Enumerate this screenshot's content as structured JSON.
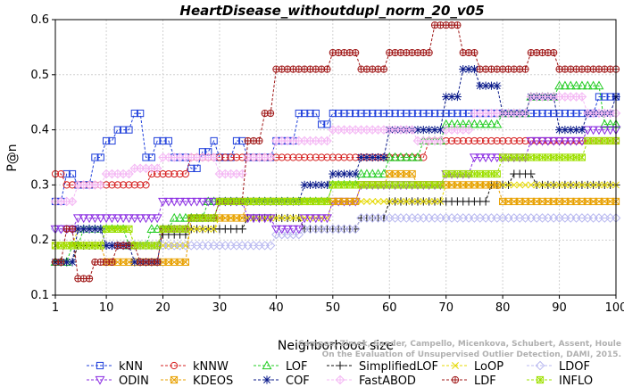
{
  "chart_data": {
    "type": "line",
    "title": "HeartDisease_withoutdupl_norm_20_v05",
    "xlabel": "Neighborhood size",
    "ylabel": "P@n",
    "xlim": [
      1,
      100
    ],
    "ylim": [
      0.1,
      0.6
    ],
    "xticks": [
      1,
      10,
      20,
      30,
      40,
      50,
      60,
      70,
      80,
      90,
      100
    ],
    "yticks": [
      0.1,
      0.2,
      0.3,
      0.4,
      0.5,
      0.6
    ],
    "grid": true,
    "legend_position": "bottom",
    "watermark": "Campos, Zimek, Sander, Campello, Micenkova, Schubert, Assent, Houle\nOn the Evaluation of Unsupervised Outlier Detection, DAMI, 2015.",
    "series": [
      {
        "name": "kNN",
        "color": "#1f3fdb",
        "marker": "square",
        "knots": [
          [
            1,
            0.27
          ],
          [
            3,
            0.32
          ],
          [
            5,
            0.3
          ],
          [
            8,
            0.35
          ],
          [
            10,
            0.38
          ],
          [
            12,
            0.4
          ],
          [
            15,
            0.43
          ],
          [
            17,
            0.35
          ],
          [
            19,
            0.38
          ],
          [
            22,
            0.35
          ],
          [
            25,
            0.33
          ],
          [
            27,
            0.36
          ],
          [
            29,
            0.38
          ],
          [
            30,
            0.35
          ],
          [
            33,
            0.38
          ],
          [
            35,
            0.35
          ],
          [
            40,
            0.38
          ],
          [
            44,
            0.43
          ],
          [
            48,
            0.41
          ],
          [
            50,
            0.43
          ],
          [
            70,
            0.43
          ],
          [
            80,
            0.43
          ],
          [
            90,
            0.43
          ],
          [
            97,
            0.46
          ],
          [
            100,
            0.46
          ]
        ]
      },
      {
        "name": "kNNW",
        "color": "#d62020",
        "marker": "circle",
        "knots": [
          [
            1,
            0.32
          ],
          [
            3,
            0.3
          ],
          [
            8,
            0.3
          ],
          [
            13,
            0.3
          ],
          [
            18,
            0.32
          ],
          [
            25,
            0.35
          ],
          [
            33,
            0.35
          ],
          [
            40,
            0.35
          ],
          [
            60,
            0.35
          ],
          [
            67,
            0.38
          ],
          [
            85,
            0.38
          ],
          [
            100,
            0.38
          ]
        ]
      },
      {
        "name": "LOF",
        "color": "#22cc22",
        "marker": "triangle-up",
        "knots": [
          [
            1,
            0.16
          ],
          [
            4,
            0.19
          ],
          [
            6,
            0.22
          ],
          [
            10,
            0.22
          ],
          [
            14,
            0.19
          ],
          [
            18,
            0.22
          ],
          [
            22,
            0.24
          ],
          [
            28,
            0.27
          ],
          [
            34,
            0.27
          ],
          [
            40,
            0.27
          ],
          [
            50,
            0.3
          ],
          [
            55,
            0.32
          ],
          [
            60,
            0.35
          ],
          [
            66,
            0.38
          ],
          [
            70,
            0.41
          ],
          [
            75,
            0.41
          ],
          [
            80,
            0.43
          ],
          [
            85,
            0.46
          ],
          [
            90,
            0.48
          ],
          [
            94,
            0.48
          ],
          [
            98,
            0.41
          ],
          [
            100,
            0.41
          ]
        ]
      },
      {
        "name": "SimplifiedLOF",
        "color": "#111111",
        "marker": "plus",
        "knots": [
          [
            1,
            0.16
          ],
          [
            5,
            0.19
          ],
          [
            10,
            0.19
          ],
          [
            15,
            0.19
          ],
          [
            20,
            0.21
          ],
          [
            25,
            0.22
          ],
          [
            30,
            0.22
          ],
          [
            35,
            0.24
          ],
          [
            40,
            0.24
          ],
          [
            45,
            0.22
          ],
          [
            50,
            0.22
          ],
          [
            55,
            0.24
          ],
          [
            60,
            0.27
          ],
          [
            70,
            0.27
          ],
          [
            78,
            0.3
          ],
          [
            82,
            0.32
          ],
          [
            86,
            0.3
          ],
          [
            95,
            0.3
          ],
          [
            100,
            0.3
          ]
        ]
      },
      {
        "name": "LoOP",
        "color": "#e5d800",
        "marker": "x",
        "knots": [
          [
            1,
            0.19
          ],
          [
            5,
            0.22
          ],
          [
            10,
            0.22
          ],
          [
            15,
            0.19
          ],
          [
            20,
            0.19
          ],
          [
            25,
            0.22
          ],
          [
            30,
            0.24
          ],
          [
            40,
            0.24
          ],
          [
            50,
            0.27
          ],
          [
            60,
            0.27
          ],
          [
            70,
            0.3
          ],
          [
            80,
            0.3
          ],
          [
            90,
            0.3
          ],
          [
            100,
            0.3
          ]
        ]
      },
      {
        "name": "LDOF",
        "color": "#b8b8f0",
        "marker": "diamond",
        "knots": [
          [
            1,
            0.22
          ],
          [
            5,
            0.22
          ],
          [
            10,
            0.19
          ],
          [
            15,
            0.19
          ],
          [
            20,
            0.19
          ],
          [
            25,
            0.19
          ],
          [
            30,
            0.19
          ],
          [
            35,
            0.19
          ],
          [
            40,
            0.21
          ],
          [
            45,
            0.22
          ],
          [
            50,
            0.22
          ],
          [
            55,
            0.24
          ],
          [
            60,
            0.24
          ],
          [
            65,
            0.24
          ],
          [
            70,
            0.24
          ],
          [
            80,
            0.24
          ],
          [
            90,
            0.24
          ],
          [
            100,
            0.24
          ]
        ]
      },
      {
        "name": "ODIN",
        "color": "#8a2be2",
        "marker": "triangle-down",
        "knots": [
          [
            1,
            0.22
          ],
          [
            5,
            0.24
          ],
          [
            10,
            0.24
          ],
          [
            15,
            0.24
          ],
          [
            20,
            0.27
          ],
          [
            25,
            0.27
          ],
          [
            30,
            0.27
          ],
          [
            35,
            0.24
          ],
          [
            40,
            0.22
          ],
          [
            45,
            0.24
          ],
          [
            50,
            0.27
          ],
          [
            55,
            0.3
          ],
          [
            60,
            0.3
          ],
          [
            65,
            0.3
          ],
          [
            70,
            0.32
          ],
          [
            75,
            0.35
          ],
          [
            80,
            0.35
          ],
          [
            85,
            0.38
          ],
          [
            90,
            0.38
          ],
          [
            95,
            0.4
          ],
          [
            100,
            0.4
          ]
        ]
      },
      {
        "name": "KDEOS",
        "color": "#e8a000",
        "marker": "square-x",
        "knots": [
          [
            1,
            0.19
          ],
          [
            5,
            0.19
          ],
          [
            10,
            0.16
          ],
          [
            15,
            0.16
          ],
          [
            20,
            0.16
          ],
          [
            25,
            0.24
          ],
          [
            30,
            0.24
          ],
          [
            35,
            0.27
          ],
          [
            40,
            0.27
          ],
          [
            50,
            0.27
          ],
          [
            55,
            0.3
          ],
          [
            60,
            0.32
          ],
          [
            65,
            0.3
          ],
          [
            70,
            0.3
          ],
          [
            80,
            0.27
          ],
          [
            90,
            0.27
          ],
          [
            100,
            0.27
          ]
        ]
      },
      {
        "name": "COF",
        "color": "#0a1a8a",
        "marker": "star",
        "knots": [
          [
            1,
            0.16
          ],
          [
            5,
            0.22
          ],
          [
            10,
            0.19
          ],
          [
            15,
            0.16
          ],
          [
            20,
            0.22
          ],
          [
            25,
            0.24
          ],
          [
            30,
            0.27
          ],
          [
            35,
            0.27
          ],
          [
            40,
            0.27
          ],
          [
            45,
            0.3
          ],
          [
            50,
            0.32
          ],
          [
            55,
            0.35
          ],
          [
            60,
            0.4
          ],
          [
            65,
            0.4
          ],
          [
            70,
            0.46
          ],
          [
            73,
            0.51
          ],
          [
            76,
            0.48
          ],
          [
            80,
            0.43
          ],
          [
            85,
            0.46
          ],
          [
            90,
            0.4
          ],
          [
            95,
            0.43
          ],
          [
            100,
            0.46
          ]
        ]
      },
      {
        "name": "FastABOD",
        "color": "#f4b8f4",
        "marker": "star-plus",
        "knots": [
          [
            1,
            0.27
          ],
          [
            5,
            0.3
          ],
          [
            10,
            0.32
          ],
          [
            15,
            0.33
          ],
          [
            20,
            0.35
          ],
          [
            25,
            0.35
          ],
          [
            30,
            0.32
          ],
          [
            35,
            0.35
          ],
          [
            40,
            0.38
          ],
          [
            45,
            0.38
          ],
          [
            50,
            0.4
          ],
          [
            55,
            0.4
          ],
          [
            60,
            0.4
          ],
          [
            65,
            0.38
          ],
          [
            70,
            0.4
          ],
          [
            75,
            0.43
          ],
          [
            80,
            0.43
          ],
          [
            85,
            0.46
          ],
          [
            90,
            0.46
          ],
          [
            95,
            0.43
          ],
          [
            100,
            0.43
          ]
        ]
      },
      {
        "name": "LDF",
        "color": "#a01818",
        "marker": "circle-plus",
        "knots": [
          [
            1,
            0.16
          ],
          [
            3,
            0.22
          ],
          [
            5,
            0.13
          ],
          [
            8,
            0.16
          ],
          [
            12,
            0.19
          ],
          [
            16,
            0.16
          ],
          [
            20,
            0.22
          ],
          [
            25,
            0.24
          ],
          [
            30,
            0.27
          ],
          [
            35,
            0.38
          ],
          [
            38,
            0.43
          ],
          [
            40,
            0.51
          ],
          [
            45,
            0.51
          ],
          [
            50,
            0.54
          ],
          [
            55,
            0.51
          ],
          [
            60,
            0.54
          ],
          [
            65,
            0.54
          ],
          [
            68,
            0.59
          ],
          [
            70,
            0.59
          ],
          [
            73,
            0.54
          ],
          [
            76,
            0.51
          ],
          [
            80,
            0.51
          ],
          [
            85,
            0.54
          ],
          [
            90,
            0.51
          ],
          [
            95,
            0.51
          ],
          [
            100,
            0.51
          ]
        ]
      },
      {
        "name": "INFLO",
        "color": "#9ee000",
        "marker": "square-star",
        "knots": [
          [
            1,
            0.19
          ],
          [
            5,
            0.19
          ],
          [
            10,
            0.22
          ],
          [
            15,
            0.19
          ],
          [
            20,
            0.22
          ],
          [
            25,
            0.24
          ],
          [
            30,
            0.27
          ],
          [
            35,
            0.27
          ],
          [
            40,
            0.27
          ],
          [
            45,
            0.27
          ],
          [
            50,
            0.3
          ],
          [
            55,
            0.3
          ],
          [
            60,
            0.3
          ],
          [
            65,
            0.3
          ],
          [
            70,
            0.32
          ],
          [
            75,
            0.32
          ],
          [
            80,
            0.35
          ],
          [
            85,
            0.35
          ],
          [
            90,
            0.35
          ],
          [
            95,
            0.38
          ],
          [
            100,
            0.38
          ]
        ]
      }
    ]
  }
}
